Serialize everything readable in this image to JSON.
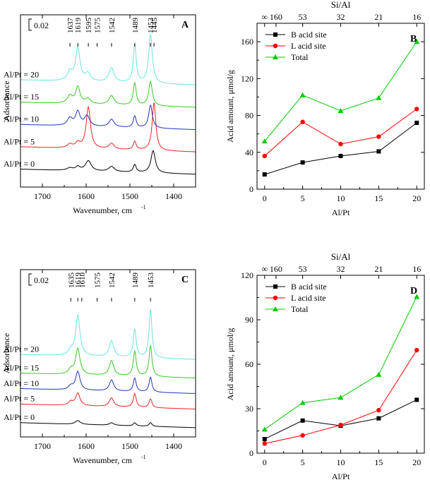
{
  "colors": {
    "b_site": "#000000",
    "l_site": "#ff0000",
    "total": "#00cc00",
    "spec_0": "#000000",
    "spec_5": "#ee2222",
    "spec_10": "#2233bb",
    "spec_15": "#33cc22",
    "spec_20": "#66e6dd"
  },
  "chart_data": [
    {
      "id": "A",
      "type": "line",
      "panel_label": "A",
      "xlabel": "Wavenumber, cm",
      "xlabel_sup": "-1",
      "ylabel": "Adsorbance",
      "xlim": [
        1750,
        1350
      ],
      "xticks": [
        "1700",
        "1600",
        "1500",
        "1400"
      ],
      "xtick_values": [
        1700,
        1600,
        1500,
        1400
      ],
      "scale_bar": "0.02",
      "peak_labels": [
        "1637",
        "1619",
        "1595",
        "1575",
        "1542",
        "1489",
        "1453",
        "1445"
      ],
      "peak_positions": [
        1637,
        1619,
        1595,
        1575,
        1542,
        1489,
        1453,
        1445
      ],
      "series": [
        {
          "name": "Al/Pt = 0",
          "color_key": "spec_0",
          "baseline": 0.02,
          "peaks": [
            [
              1637,
              0.004,
              8
            ],
            [
              1619,
              0.006,
              6
            ],
            [
              1595,
              0.016,
              8
            ],
            [
              1542,
              0.008,
              8
            ],
            [
              1489,
              0.012,
              4
            ],
            [
              1447,
              0.035,
              6
            ]
          ]
        },
        {
          "name": "Al/Pt = 5",
          "color_key": "spec_5",
          "baseline": 0.055,
          "peaks": [
            [
              1637,
              0.006,
              7
            ],
            [
              1619,
              0.008,
              6
            ],
            [
              1595,
              0.065,
              6
            ],
            [
              1542,
              0.009,
              7
            ],
            [
              1489,
              0.013,
              4
            ],
            [
              1445,
              0.075,
              5
            ]
          ]
        },
        {
          "name": "Al/Pt = 10",
          "color_key": "spec_10",
          "baseline": 0.09,
          "peaks": [
            [
              1637,
              0.012,
              7
            ],
            [
              1619,
              0.022,
              6
            ],
            [
              1598,
              0.016,
              7
            ],
            [
              1542,
              0.012,
              7
            ],
            [
              1489,
              0.018,
              4
            ],
            [
              1453,
              0.036,
              5
            ]
          ]
        },
        {
          "name": "Al/Pt = 15",
          "color_key": "spec_15",
          "baseline": 0.125,
          "peaks": [
            [
              1637,
              0.012,
              7
            ],
            [
              1619,
              0.026,
              6
            ],
            [
              1596,
              0.008,
              7
            ],
            [
              1542,
              0.014,
              7
            ],
            [
              1489,
              0.035,
              4
            ],
            [
              1453,
              0.038,
              5
            ]
          ]
        },
        {
          "name": "Al/Pt = 20",
          "color_key": "spec_20",
          "baseline": 0.16,
          "peaks": [
            [
              1637,
              0.014,
              7
            ],
            [
              1619,
              0.052,
              6
            ],
            [
              1596,
              0.012,
              7
            ],
            [
              1542,
              0.022,
              7
            ],
            [
              1489,
              0.06,
              4
            ],
            [
              1453,
              0.076,
              5
            ]
          ]
        }
      ]
    },
    {
      "id": "B",
      "type": "line",
      "panel_label": "B",
      "xlabel": "Al/Pt",
      "ylabel": "Acid amount, μmol/g",
      "top_axis_label": "Si/Al",
      "top_ticks": [
        "∞",
        "160",
        "53",
        "32",
        "21",
        "16"
      ],
      "top_tick_values": [
        0,
        1.5,
        5,
        10,
        15,
        20
      ],
      "categories": [
        0,
        5,
        10,
        15,
        20
      ],
      "xticks": [
        "0",
        "5",
        "10",
        "15",
        "20"
      ],
      "xlim": [
        -1,
        21
      ],
      "ylim": [
        0,
        180
      ],
      "yticks": [
        "0",
        "40",
        "80",
        "120",
        "160"
      ],
      "ytick_values": [
        0,
        40,
        80,
        120,
        160
      ],
      "series": [
        {
          "name": "B acid site",
          "color_key": "b_site",
          "marker": "square",
          "values": [
            16,
            29,
            36,
            41,
            72
          ]
        },
        {
          "name": "L acid site",
          "color_key": "l_site",
          "marker": "circle",
          "values": [
            36,
            73,
            49,
            57,
            87
          ]
        },
        {
          "name": "Total",
          "color_key": "total",
          "marker": "triangle",
          "values": [
            52,
            102,
            85,
            99,
            160
          ]
        }
      ],
      "legend": "top-left"
    },
    {
      "id": "C",
      "type": "line",
      "panel_label": "C",
      "xlabel": "Wavenumber, cm",
      "xlabel_sup": "-1",
      "ylabel": "Adsorbance",
      "xlim": [
        1750,
        1350
      ],
      "xticks": [
        "1700",
        "1600",
        "1500",
        "1400"
      ],
      "xtick_values": [
        1700,
        1600,
        1500,
        1400
      ],
      "scale_bar": "0.02",
      "peak_labels": [
        "1635",
        "1619",
        "1610",
        "1575",
        "1542",
        "1489",
        "1453"
      ],
      "peak_positions": [
        1635,
        1619,
        1610,
        1575,
        1542,
        1489,
        1453
      ],
      "series": [
        {
          "name": "Al/Pt = 0",
          "color_key": "spec_0",
          "baseline": 0.015,
          "peaks": [
            [
              1619,
              0.006,
              7
            ],
            [
              1542,
              0.004,
              6
            ],
            [
              1489,
              0.005,
              4
            ],
            [
              1453,
              0.006,
              4
            ]
          ]
        },
        {
          "name": "Al/Pt = 5",
          "color_key": "spec_5",
          "baseline": 0.045,
          "peaks": [
            [
              1635,
              0.006,
              6
            ],
            [
              1619,
              0.02,
              6
            ],
            [
              1542,
              0.014,
              6
            ],
            [
              1489,
              0.022,
              4
            ],
            [
              1453,
              0.014,
              4
            ]
          ]
        },
        {
          "name": "Al/Pt = 10",
          "color_key": "spec_10",
          "baseline": 0.07,
          "peaks": [
            [
              1635,
              0.006,
              6
            ],
            [
              1619,
              0.03,
              6
            ],
            [
              1542,
              0.018,
              6
            ],
            [
              1489,
              0.022,
              4
            ],
            [
              1453,
              0.024,
              4
            ]
          ]
        },
        {
          "name": "Al/Pt = 15",
          "color_key": "spec_15",
          "baseline": 0.095,
          "peaks": [
            [
              1635,
              0.008,
              6
            ],
            [
              1619,
              0.042,
              6
            ],
            [
              1542,
              0.024,
              6
            ],
            [
              1489,
              0.04,
              4
            ],
            [
              1453,
              0.05,
              4
            ]
          ]
        },
        {
          "name": "Al/Pt = 20",
          "color_key": "spec_20",
          "baseline": 0.125,
          "peaks": [
            [
              1635,
              0.008,
              6
            ],
            [
              1619,
              0.065,
              6
            ],
            [
              1542,
              0.026,
              6
            ],
            [
              1489,
              0.045,
              4
            ],
            [
              1453,
              0.078,
              4
            ]
          ]
        }
      ]
    },
    {
      "id": "D",
      "type": "line",
      "panel_label": "D",
      "xlabel": "Al/Pt",
      "ylabel": "Acid amount, μmol/g",
      "top_axis_label": "Si/Al",
      "top_ticks": [
        "∞",
        "160",
        "53",
        "32",
        "21",
        "16"
      ],
      "top_tick_values": [
        0,
        1.5,
        5,
        10,
        15,
        20
      ],
      "categories": [
        0,
        5,
        10,
        15,
        20
      ],
      "xticks": [
        "0",
        "5",
        "10",
        "15",
        "20"
      ],
      "xlim": [
        -1,
        21
      ],
      "ylim": [
        0,
        120
      ],
      "yticks": [
        "0",
        "30",
        "60",
        "90",
        "120"
      ],
      "ytick_values": [
        0,
        30,
        60,
        90,
        120
      ],
      "series": [
        {
          "name": "B acid site",
          "color_key": "b_site",
          "marker": "square",
          "values": [
            9.5,
            22,
            18.5,
            23.5,
            36
          ]
        },
        {
          "name": "L acid site",
          "color_key": "l_site",
          "marker": "circle",
          "values": [
            6.5,
            12,
            19,
            29,
            69.5
          ]
        },
        {
          "name": "Total",
          "color_key": "total",
          "marker": "triangle",
          "values": [
            16,
            34,
            37.5,
            53,
            105.5
          ]
        }
      ],
      "legend": "top-left"
    }
  ]
}
